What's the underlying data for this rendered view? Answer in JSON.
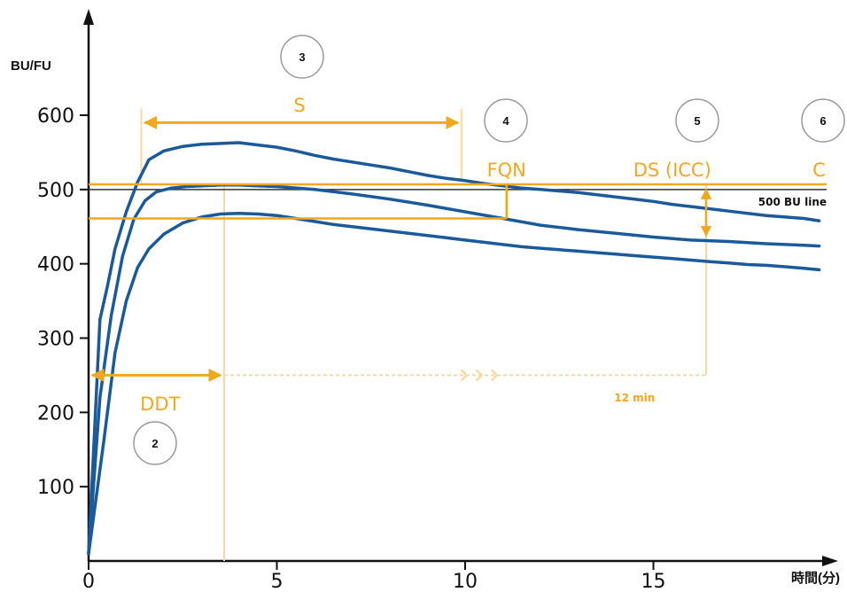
{
  "chart_data": {
    "type": "line",
    "title": "",
    "ylabel": "BU/FU",
    "xlabel": "時間(分)",
    "xlim": [
      0,
      19.5
    ],
    "ylim": [
      0,
      600
    ],
    "x_ticks": [
      0,
      5,
      10,
      15
    ],
    "y_ticks": [
      100,
      200,
      300,
      400,
      500,
      600
    ],
    "grid": false,
    "reference_line": {
      "value": 500,
      "label": "500 BU line"
    },
    "series": [
      {
        "x": [
          0,
          0.3,
          0.5,
          0.7,
          1.0,
          1.3,
          1.6,
          2.0,
          2.5,
          3.0,
          3.5,
          4.0,
          4.5,
          5.0,
          5.5,
          6.0,
          6.5,
          7.0,
          7.5,
          8.0,
          8.5,
          9.0,
          9.5,
          10.0,
          10.5,
          11.0,
          11.5,
          12.0,
          12.5,
          13.0,
          13.5,
          14.0,
          14.5,
          15.0,
          15.5,
          16.0,
          16.5,
          17.0,
          17.5,
          18.0,
          18.5,
          19.0,
          19.4
        ],
        "y": [
          10,
          325,
          370,
          420,
          470,
          510,
          540,
          552,
          558,
          561,
          562,
          563,
          560,
          557,
          552,
          546,
          541,
          537,
          533,
          529,
          524,
          519,
          515,
          512,
          508,
          505,
          502,
          500,
          498,
          496,
          493,
          490,
          487,
          484,
          480,
          477,
          474,
          471,
          468,
          465,
          463,
          461,
          458
        ]
      },
      {
        "x": [
          0,
          0.3,
          0.6,
          0.9,
          1.2,
          1.5,
          1.8,
          2.2,
          2.6,
          3.0,
          3.5,
          4.0,
          4.5,
          5.0,
          6.0,
          7.0,
          8.0,
          9.0,
          10.0,
          11.0,
          12.0,
          13.0,
          14.0,
          15.0,
          16.0,
          17.0,
          18.0,
          19.0,
          19.4
        ],
        "y": [
          10,
          220,
          330,
          410,
          460,
          485,
          497,
          502,
          504,
          505,
          506,
          506,
          505,
          504,
          500,
          494,
          487,
          479,
          470,
          461,
          452,
          446,
          441,
          436,
          432,
          430,
          427,
          425,
          424
        ]
      },
      {
        "x": [
          0,
          0.4,
          0.7,
          1.0,
          1.3,
          1.6,
          2.0,
          2.5,
          3.0,
          3.5,
          4.0,
          4.5,
          5.0,
          5.5,
          6.0,
          6.5,
          7.0,
          7.5,
          8.0,
          8.5,
          9.0,
          9.5,
          10.0,
          10.5,
          11.0,
          11.5,
          12.0,
          12.5,
          13.0,
          13.5,
          14.0,
          14.5,
          15.0,
          15.5,
          16.0,
          16.5,
          17.0,
          17.5,
          18.0,
          18.5,
          19.0,
          19.4
        ],
        "y": [
          10,
          160,
          280,
          350,
          395,
          420,
          440,
          455,
          463,
          467,
          468,
          467,
          465,
          461,
          457,
          453,
          450,
          447,
          444,
          441,
          438,
          435,
          432,
          429,
          426,
          423,
          421,
          419,
          417,
          415,
          413,
          411,
          409,
          407,
          405,
          403,
          401,
          399,
          398,
          396,
          394,
          392
        ]
      }
    ],
    "annotations": {
      "S": "S",
      "FQN": "FQN",
      "DS": "DS (ICC)",
      "C": "C",
      "DDT": "DDT",
      "twelve_min": "12 min",
      "markers": [
        "2",
        "3",
        "4",
        "5",
        "6"
      ]
    },
    "colors": {
      "curve": "#1a5a9a",
      "annotation": "#f0a81e",
      "annotation_light": "#f8d9a0",
      "axis": "#111111",
      "ref_line": "#333333"
    }
  }
}
